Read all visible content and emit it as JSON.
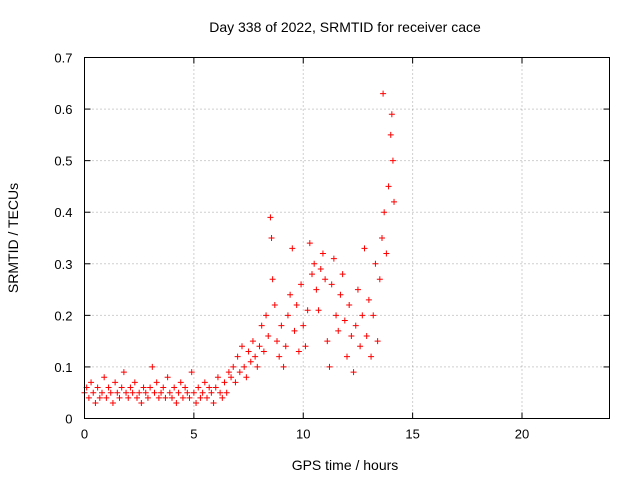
{
  "chart_data": {
    "type": "scatter",
    "title": "Day 338 of 2022, SRMTID for receiver cace",
    "xlabel": "GPS time / hours",
    "ylabel": "SRMTID / TECUs",
    "xlim": [
      0,
      24
    ],
    "ylim": [
      0,
      0.7
    ],
    "xticks": [
      "0",
      "5",
      "10",
      "15",
      "20"
    ],
    "yticks": [
      "0",
      "0.1",
      "0.2",
      "0.3",
      "0.4",
      "0.5",
      "0.6",
      "0.7"
    ],
    "grid": true,
    "marker": "plus",
    "color": "#ff0000",
    "series": [
      {
        "name": "SRMTID",
        "points": [
          [
            0.0,
            0.05
          ],
          [
            0.1,
            0.06
          ],
          [
            0.2,
            0.04
          ],
          [
            0.3,
            0.07
          ],
          [
            0.4,
            0.05
          ],
          [
            0.5,
            0.03
          ],
          [
            0.6,
            0.06
          ],
          [
            0.7,
            0.04
          ],
          [
            0.8,
            0.05
          ],
          [
            0.9,
            0.08
          ],
          [
            1.0,
            0.04
          ],
          [
            1.1,
            0.06
          ],
          [
            1.2,
            0.05
          ],
          [
            1.3,
            0.03
          ],
          [
            1.4,
            0.07
          ],
          [
            1.5,
            0.05
          ],
          [
            1.6,
            0.04
          ],
          [
            1.7,
            0.06
          ],
          [
            1.8,
            0.09
          ],
          [
            1.9,
            0.05
          ],
          [
            2.0,
            0.04
          ],
          [
            2.1,
            0.06
          ],
          [
            2.2,
            0.05
          ],
          [
            2.3,
            0.07
          ],
          [
            2.4,
            0.04
          ],
          [
            2.5,
            0.05
          ],
          [
            2.6,
            0.03
          ],
          [
            2.7,
            0.06
          ],
          [
            2.8,
            0.05
          ],
          [
            2.9,
            0.04
          ],
          [
            3.0,
            0.06
          ],
          [
            3.1,
            0.1
          ],
          [
            3.2,
            0.05
          ],
          [
            3.3,
            0.07
          ],
          [
            3.4,
            0.04
          ],
          [
            3.5,
            0.05
          ],
          [
            3.6,
            0.06
          ],
          [
            3.7,
            0.04
          ],
          [
            3.8,
            0.08
          ],
          [
            3.9,
            0.05
          ],
          [
            4.0,
            0.04
          ],
          [
            4.1,
            0.06
          ],
          [
            4.2,
            0.03
          ],
          [
            4.3,
            0.05
          ],
          [
            4.4,
            0.07
          ],
          [
            4.5,
            0.04
          ],
          [
            4.6,
            0.06
          ],
          [
            4.7,
            0.05
          ],
          [
            4.8,
            0.04
          ],
          [
            4.9,
            0.09
          ],
          [
            5.0,
            0.05
          ],
          [
            5.1,
            0.03
          ],
          [
            5.2,
            0.06
          ],
          [
            5.3,
            0.04
          ],
          [
            5.4,
            0.05
          ],
          [
            5.5,
            0.07
          ],
          [
            5.6,
            0.04
          ],
          [
            5.7,
            0.06
          ],
          [
            5.8,
            0.05
          ],
          [
            5.9,
            0.03
          ],
          [
            6.0,
            0.06
          ],
          [
            6.1,
            0.08
          ],
          [
            6.2,
            0.05
          ],
          [
            6.3,
            0.04
          ],
          [
            6.4,
            0.07
          ],
          [
            6.5,
            0.05
          ],
          [
            6.6,
            0.09
          ],
          [
            6.7,
            0.08
          ],
          [
            6.8,
            0.1
          ],
          [
            6.9,
            0.07
          ],
          [
            7.0,
            0.12
          ],
          [
            7.1,
            0.09
          ],
          [
            7.2,
            0.14
          ],
          [
            7.3,
            0.1
          ],
          [
            7.4,
            0.08
          ],
          [
            7.5,
            0.13
          ],
          [
            7.6,
            0.11
          ],
          [
            7.7,
            0.15
          ],
          [
            7.8,
            0.12
          ],
          [
            7.9,
            0.1
          ],
          [
            8.0,
            0.14
          ],
          [
            8.1,
            0.18
          ],
          [
            8.2,
            0.13
          ],
          [
            8.3,
            0.2
          ],
          [
            8.4,
            0.16
          ],
          [
            8.5,
            0.39
          ],
          [
            8.55,
            0.35
          ],
          [
            8.6,
            0.27
          ],
          [
            8.7,
            0.22
          ],
          [
            8.8,
            0.15
          ],
          [
            8.9,
            0.12
          ],
          [
            9.0,
            0.18
          ],
          [
            9.1,
            0.1
          ],
          [
            9.2,
            0.14
          ],
          [
            9.3,
            0.2
          ],
          [
            9.4,
            0.24
          ],
          [
            9.5,
            0.33
          ],
          [
            9.6,
            0.17
          ],
          [
            9.7,
            0.22
          ],
          [
            9.8,
            0.13
          ],
          [
            9.9,
            0.26
          ],
          [
            10.0,
            0.18
          ],
          [
            10.1,
            0.14
          ],
          [
            10.2,
            0.21
          ],
          [
            10.3,
            0.34
          ],
          [
            10.4,
            0.28
          ],
          [
            10.5,
            0.3
          ],
          [
            10.6,
            0.25
          ],
          [
            10.7,
            0.21
          ],
          [
            10.8,
            0.29
          ],
          [
            10.9,
            0.32
          ],
          [
            11.0,
            0.27
          ],
          [
            11.1,
            0.15
          ],
          [
            11.2,
            0.1
          ],
          [
            11.3,
            0.26
          ],
          [
            11.4,
            0.31
          ],
          [
            11.5,
            0.2
          ],
          [
            11.6,
            0.17
          ],
          [
            11.7,
            0.24
          ],
          [
            11.8,
            0.28
          ],
          [
            11.9,
            0.19
          ],
          [
            12.0,
            0.12
          ],
          [
            12.1,
            0.22
          ],
          [
            12.2,
            0.16
          ],
          [
            12.3,
            0.09
          ],
          [
            12.4,
            0.18
          ],
          [
            12.5,
            0.25
          ],
          [
            12.6,
            0.14
          ],
          [
            12.7,
            0.2
          ],
          [
            12.8,
            0.33
          ],
          [
            12.9,
            0.16
          ],
          [
            13.0,
            0.23
          ],
          [
            13.1,
            0.12
          ],
          [
            13.2,
            0.2
          ],
          [
            13.3,
            0.3
          ],
          [
            13.4,
            0.15
          ],
          [
            13.5,
            0.27
          ],
          [
            13.6,
            0.35
          ],
          [
            13.65,
            0.63
          ],
          [
            13.7,
            0.4
          ],
          [
            13.8,
            0.32
          ],
          [
            13.9,
            0.45
          ],
          [
            14.0,
            0.55
          ],
          [
            14.05,
            0.59
          ],
          [
            14.1,
            0.5
          ],
          [
            14.15,
            0.42
          ]
        ]
      }
    ]
  }
}
